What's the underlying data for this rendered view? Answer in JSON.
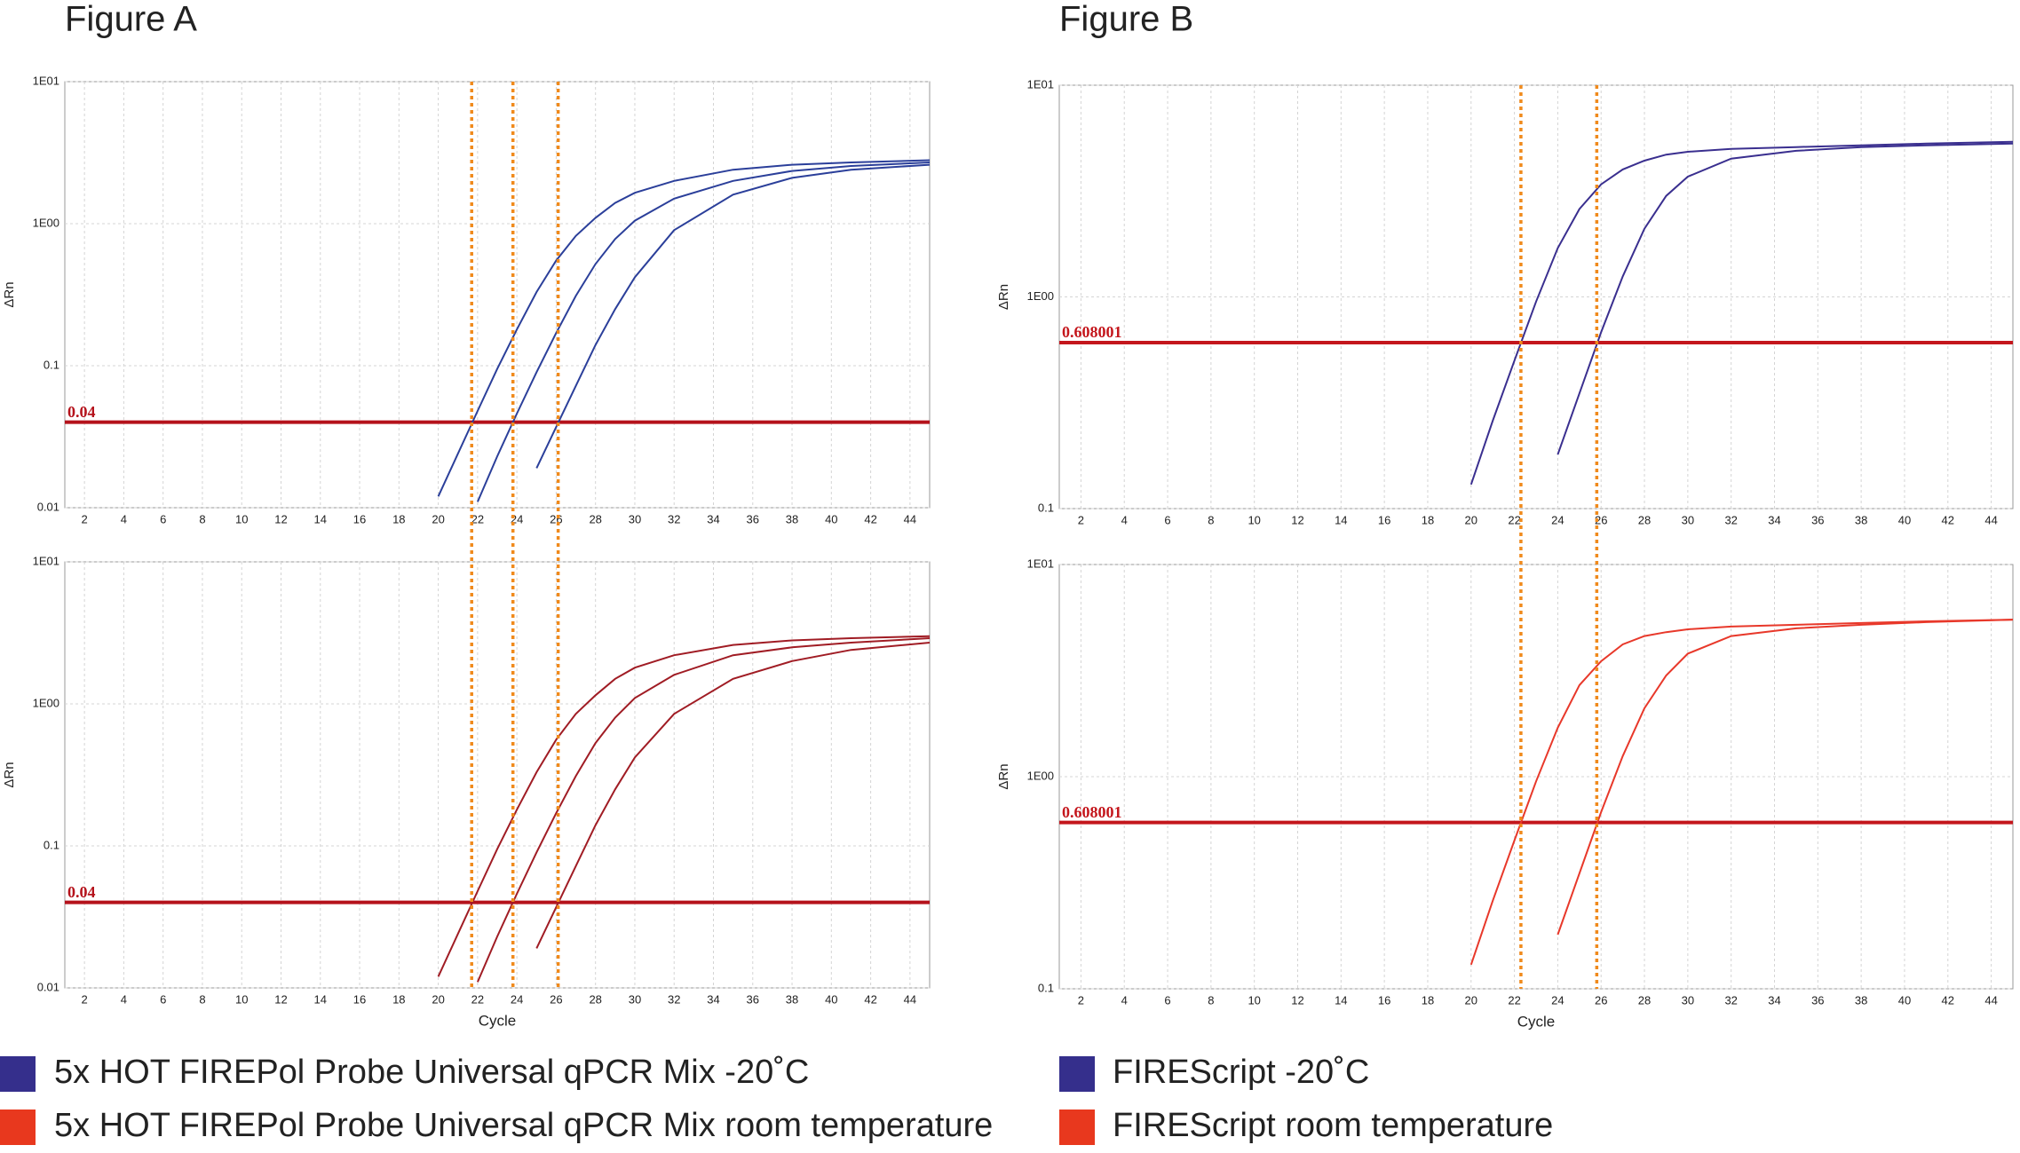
{
  "figures": [
    {
      "title": "Figure A",
      "ct_lines": [
        21.7,
        23.8,
        26.1
      ],
      "ct_color": "#f08a1c",
      "legend": [
        {
          "label": "5x HOT FIREPol Probe Universal qPCR Mix -20˚C",
          "color": "#352f8c"
        },
        {
          "label": "5x HOT FIREPol Probe Universal qPCR Mix room temperature",
          "color": "#e8381e"
        }
      ]
    },
    {
      "title": "Figure B",
      "ct_lines": [
        22.3,
        25.8
      ],
      "ct_color": "#f08a1c",
      "legend": [
        {
          "label": "FIREScript -20˚C",
          "color": "#352f8c"
        },
        {
          "label": "FIREScript room temperature",
          "color": "#e8381e"
        }
      ]
    }
  ],
  "chart_data": [
    {
      "type": "line",
      "ylabel": "ΔRn",
      "log_y": true,
      "grid": true,
      "xlim": [
        1,
        45
      ],
      "ylim": [
        0.01,
        10
      ],
      "xticks": [
        2,
        4,
        6,
        8,
        10,
        12,
        14,
        16,
        18,
        20,
        22,
        24,
        26,
        28,
        30,
        32,
        34,
        36,
        38,
        40,
        42,
        44
      ],
      "yticks": [
        0.01,
        0.1,
        {
          "value": 1,
          "label": "1E00"
        },
        {
          "value": 10,
          "label": "1E01"
        }
      ],
      "threshold": 0.04,
      "threshold_color": "#b5121b",
      "x": [
        20,
        21,
        22,
        23,
        24,
        25,
        26,
        27,
        28,
        29,
        30,
        32,
        35,
        38,
        41,
        45
      ],
      "series": [
        {
          "color": "#2b3f9a",
          "values": [
            0.012,
            0.024,
            0.048,
            0.095,
            0.18,
            0.33,
            0.55,
            0.82,
            1.1,
            1.4,
            1.65,
            2.0,
            2.4,
            2.6,
            2.7,
            2.8
          ]
        },
        {
          "color": "#2b3f9a",
          "values": [
            null,
            null,
            0.011,
            0.023,
            0.046,
            0.09,
            0.17,
            0.31,
            0.52,
            0.78,
            1.05,
            1.5,
            2.0,
            2.35,
            2.55,
            2.7
          ]
        },
        {
          "color": "#2b3f9a",
          "values": [
            null,
            null,
            null,
            null,
            null,
            0.019,
            0.037,
            0.072,
            0.14,
            0.25,
            0.42,
            0.9,
            1.6,
            2.1,
            2.4,
            2.6
          ]
        }
      ]
    },
    {
      "type": "line",
      "ylabel": "ΔRn",
      "xlabel": "Cycle",
      "log_y": true,
      "grid": true,
      "xlim": [
        1,
        45
      ],
      "ylim": [
        0.01,
        10
      ],
      "xticks": [
        2,
        4,
        6,
        8,
        10,
        12,
        14,
        16,
        18,
        20,
        22,
        24,
        26,
        28,
        30,
        32,
        34,
        36,
        38,
        40,
        42,
        44
      ],
      "yticks": [
        0.01,
        0.1,
        {
          "value": 1,
          "label": "1E00"
        },
        {
          "value": 10,
          "label": "1E01"
        }
      ],
      "threshold": 0.04,
      "threshold_color": "#b5121b",
      "x": [
        20,
        21,
        22,
        23,
        24,
        25,
        26,
        27,
        28,
        29,
        30,
        32,
        35,
        38,
        41,
        45
      ],
      "series": [
        {
          "color": "#a01c24",
          "values": [
            0.012,
            0.024,
            0.048,
            0.095,
            0.18,
            0.33,
            0.56,
            0.85,
            1.15,
            1.5,
            1.8,
            2.2,
            2.6,
            2.8,
            2.9,
            3.0
          ]
        },
        {
          "color": "#a01c24",
          "values": [
            null,
            null,
            0.011,
            0.023,
            0.046,
            0.09,
            0.17,
            0.31,
            0.53,
            0.8,
            1.1,
            1.6,
            2.2,
            2.5,
            2.7,
            2.9
          ]
        },
        {
          "color": "#a01c24",
          "values": [
            null,
            null,
            null,
            null,
            null,
            0.019,
            0.037,
            0.072,
            0.14,
            0.25,
            0.42,
            0.85,
            1.5,
            2.0,
            2.4,
            2.7
          ]
        }
      ]
    },
    {
      "type": "line",
      "ylabel": "ΔRn",
      "log_y": true,
      "grid": true,
      "xlim": [
        1,
        45
      ],
      "ylim": [
        0.1,
        10
      ],
      "xticks": [
        2,
        4,
        6,
        8,
        10,
        12,
        14,
        16,
        18,
        20,
        22,
        24,
        26,
        28,
        30,
        32,
        34,
        36,
        38,
        40,
        42,
        44
      ],
      "yticks": [
        0.1,
        {
          "value": 1,
          "label": "1E00"
        },
        {
          "value": 10,
          "label": "1E01"
        }
      ],
      "threshold": 0.608001,
      "threshold_color": "#c4161c",
      "x": [
        20,
        21,
        22,
        23,
        24,
        25,
        26,
        27,
        28,
        29,
        30,
        32,
        35,
        38,
        41,
        45
      ],
      "series": [
        {
          "color": "#3a2f8f",
          "values": [
            0.13,
            0.26,
            0.5,
            0.95,
            1.7,
            2.6,
            3.4,
            4.0,
            4.4,
            4.7,
            4.85,
            5.0,
            5.1,
            5.2,
            5.3,
            5.4
          ]
        },
        {
          "color": "#3a2f8f",
          "values": [
            null,
            null,
            null,
            null,
            0.18,
            0.35,
            0.68,
            1.25,
            2.1,
            3.0,
            3.7,
            4.5,
            4.9,
            5.1,
            5.2,
            5.3
          ]
        }
      ]
    },
    {
      "type": "line",
      "ylabel": "ΔRn",
      "xlabel": "Cycle",
      "log_y": true,
      "grid": true,
      "xlim": [
        1,
        45
      ],
      "ylim": [
        0.1,
        10
      ],
      "xticks": [
        2,
        4,
        6,
        8,
        10,
        12,
        14,
        16,
        18,
        20,
        22,
        24,
        26,
        28,
        30,
        32,
        34,
        36,
        38,
        40,
        42,
        44
      ],
      "yticks": [
        0.1,
        {
          "value": 1,
          "label": "1E00"
        },
        {
          "value": 10,
          "label": "1E01"
        }
      ],
      "threshold": 0.608001,
      "threshold_color": "#c4161c",
      "x": [
        20,
        21,
        22,
        23,
        24,
        25,
        26,
        27,
        28,
        29,
        30,
        32,
        35,
        38,
        41,
        45
      ],
      "series": [
        {
          "color": "#e8382a",
          "values": [
            0.13,
            0.26,
            0.5,
            0.95,
            1.7,
            2.7,
            3.5,
            4.2,
            4.6,
            4.8,
            4.95,
            5.1,
            5.2,
            5.3,
            5.4,
            5.5
          ]
        },
        {
          "color": "#e8382a",
          "values": [
            null,
            null,
            null,
            null,
            0.18,
            0.35,
            0.68,
            1.25,
            2.1,
            3.0,
            3.8,
            4.6,
            5.0,
            5.2,
            5.35,
            5.5
          ]
        }
      ]
    }
  ]
}
